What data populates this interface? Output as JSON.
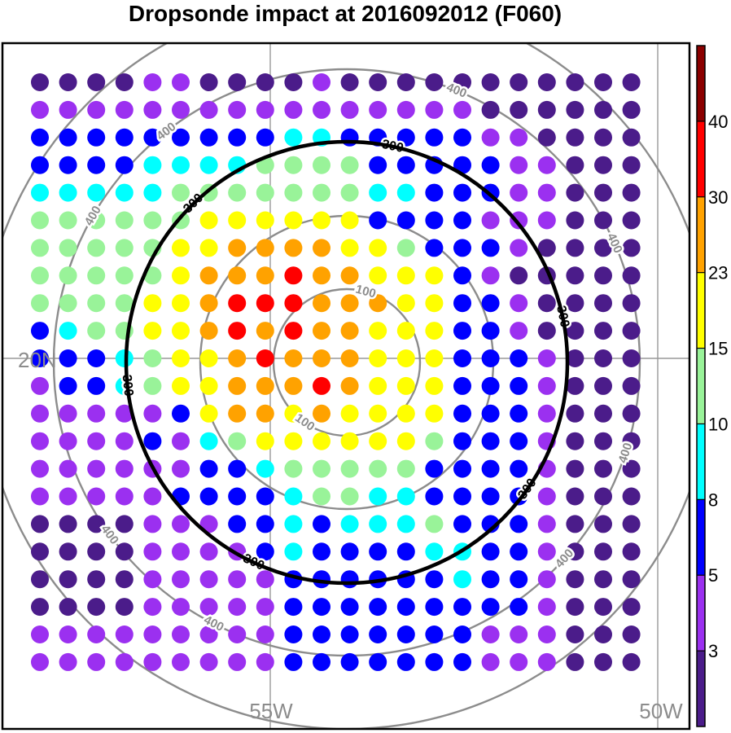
{
  "title": "Dropsonde impact at 2016092012 (F060)",
  "chart_data": {
    "type": "scatter",
    "subtype": "gridded-dot-map",
    "projection": "polar",
    "grid_size": [
      22,
      22
    ],
    "level_values": [
      3,
      5,
      8,
      10,
      15,
      23,
      30,
      40
    ],
    "colorbar": {
      "tick_labels": [
        "3",
        "5",
        "8",
        "10",
        "15",
        "23",
        "30",
        "40"
      ],
      "colors": [
        "#4b1c8a",
        "#9b30f0",
        "#0000ff",
        "#00ffff",
        "#99f399",
        "#ffff00",
        "#ffa200",
        "#ff0000",
        "#8b0000"
      ]
    },
    "levels": [
      "0000110000100000000000",
      "1111111111111111000000",
      "2222222223322222110000",
      "2222333344442222211000",
      "3333344444443322211000",
      "4444445555552222111000",
      "4444455666655422210000",
      "4444456667665552100000",
      "4444556777666552210000",
      "2344556767665552210000",
      "2223455676665552221000",
      "1223455666765552221000",
      "1111125665655552221000",
      "1111213455555542221000",
      "1111112234444422221000",
      "1111122223443322221000",
      "0000111223233342221000",
      "0000111123222233221000",
      "0000111112222223221000",
      "0000111112222222221000",
      "1111111112222222111000",
      "1111111112222222111000"
    ],
    "contour_labels": [
      "100",
      "300",
      "400"
    ],
    "lat_labels": [
      "20N"
    ],
    "lon_labels": [
      "55W",
      "50W"
    ]
  }
}
